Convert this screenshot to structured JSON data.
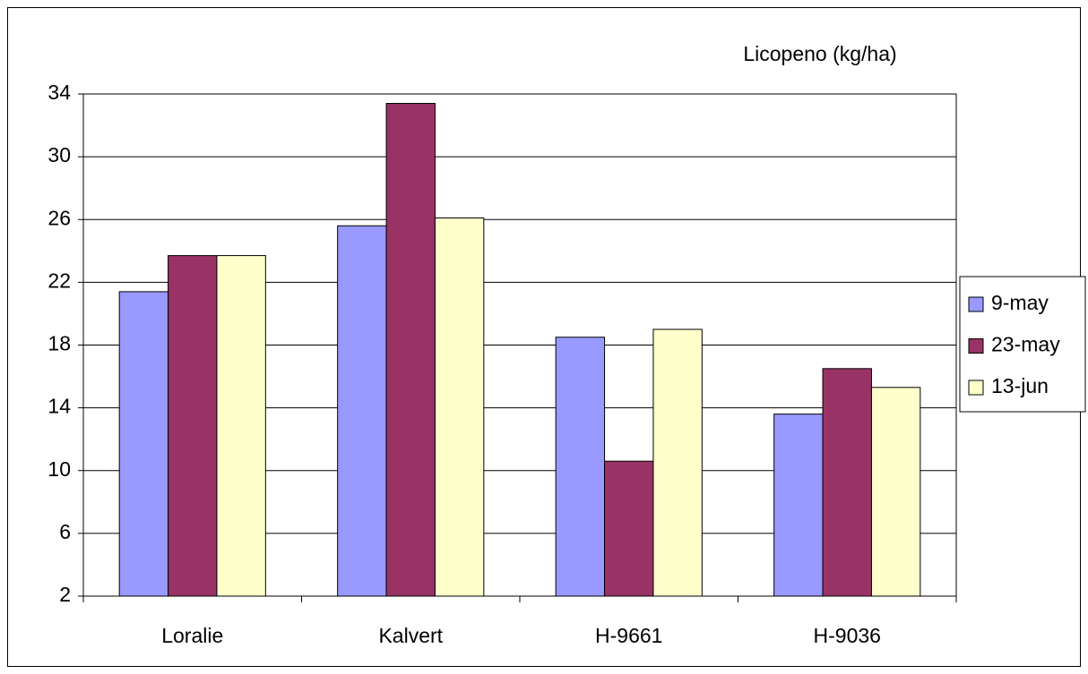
{
  "chart_data": {
    "type": "bar",
    "title": "Licopeno (kg/ha)",
    "categories": [
      "Loralie",
      "Kalvert",
      "H-9661",
      "H-9036"
    ],
    "series": [
      {
        "name": "9-may",
        "color": "#9999ff",
        "values": [
          21.4,
          25.6,
          18.5,
          13.6
        ]
      },
      {
        "name": "23-may",
        "color": "#993366",
        "values": [
          23.7,
          33.4,
          10.6,
          16.5
        ]
      },
      {
        "name": "13-jun",
        "color": "#ffffcc",
        "values": [
          23.7,
          26.1,
          19.0,
          15.3
        ]
      }
    ],
    "ylim": [
      2,
      34
    ],
    "yticks": [
      2,
      6,
      10,
      14,
      18,
      22,
      26,
      30,
      34
    ],
    "grid": true,
    "legend": "right"
  }
}
